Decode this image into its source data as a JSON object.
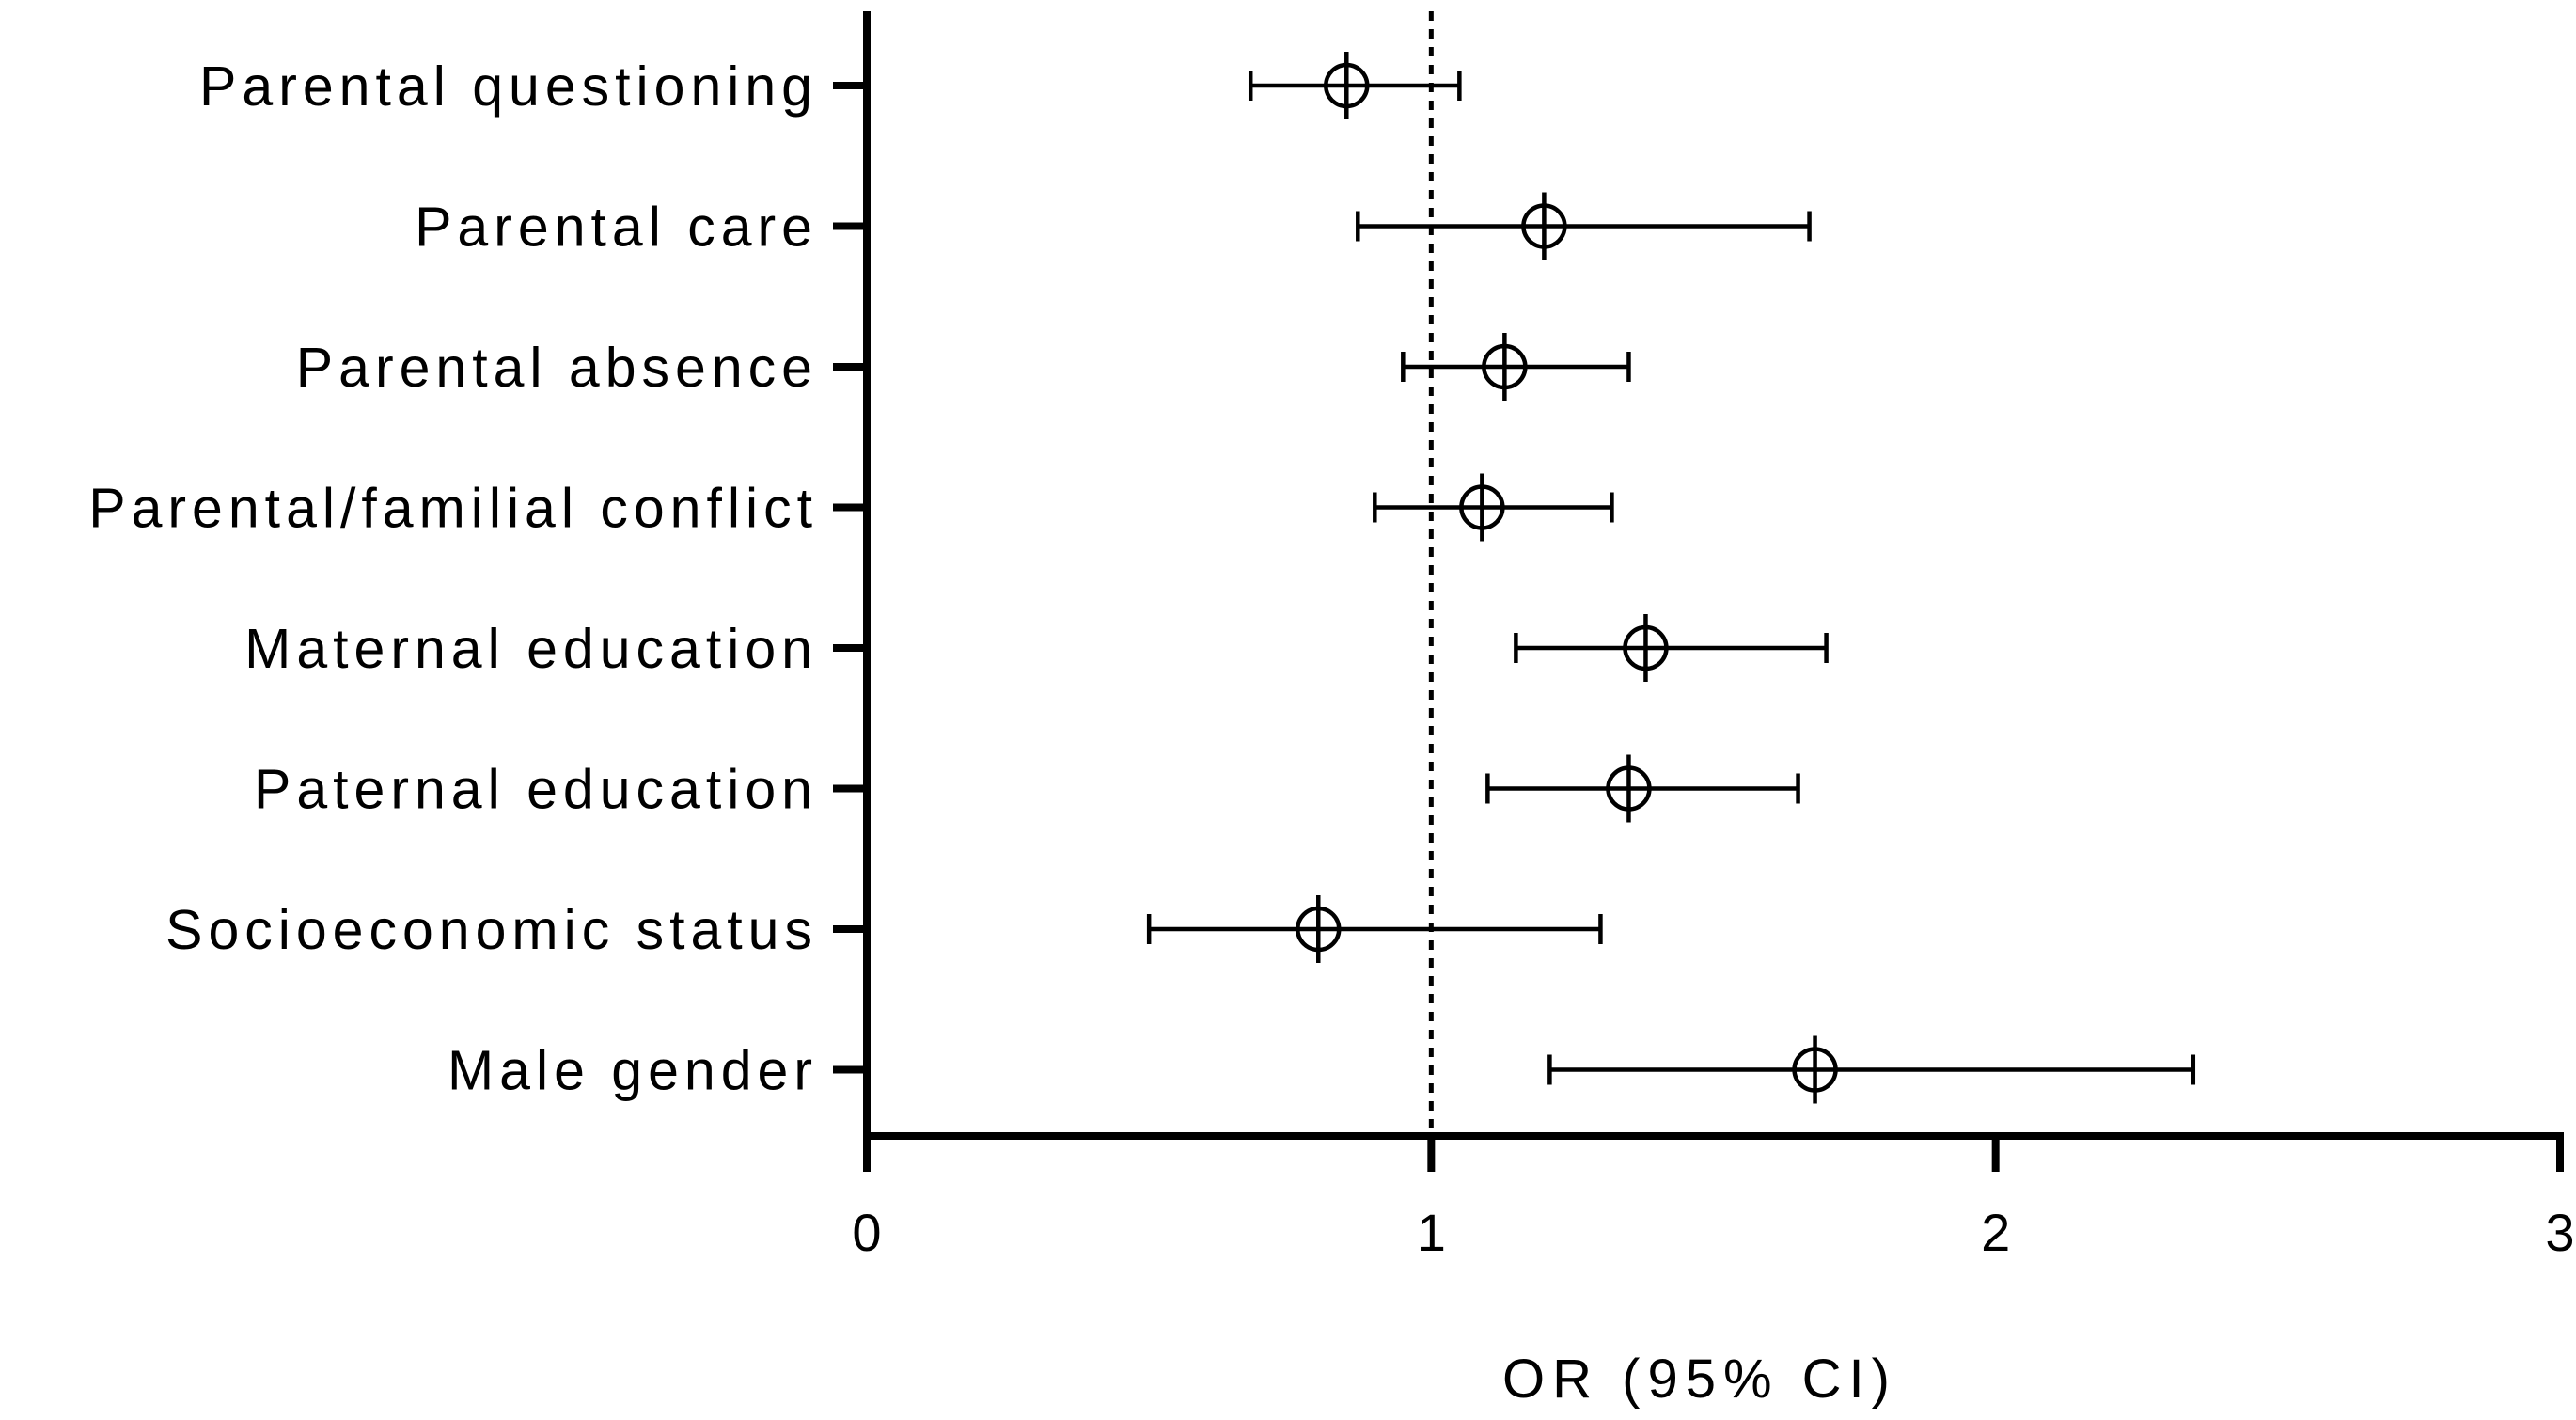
{
  "chart_data": {
    "type": "forest",
    "title": "",
    "xlabel": "OR (95% CI)",
    "ylabel": "",
    "xlim": [
      0,
      3
    ],
    "xticks": [
      0,
      1,
      2,
      3
    ],
    "xtick_labels": [
      "0",
      "1",
      "2",
      "3"
    ],
    "reference_line": 1,
    "categories": [
      "Parental questioning",
      "Parental care",
      "Parental absence",
      "Parental/familial conflict",
      "Maternal education",
      "Paternal education",
      "Socioeconomic status",
      "Male gender"
    ],
    "estimates": [
      0.85,
      1.2,
      1.13,
      1.09,
      1.38,
      1.35,
      0.8,
      1.68
    ],
    "ci_lower": [
      0.68,
      0.87,
      0.95,
      0.9,
      1.15,
      1.1,
      0.5,
      1.21
    ],
    "ci_upper": [
      1.05,
      1.67,
      1.35,
      1.32,
      1.7,
      1.65,
      1.3,
      2.35
    ],
    "grid": false,
    "legend": "none"
  },
  "colors": {
    "background": "#ffffff",
    "ink": "#000000"
  }
}
